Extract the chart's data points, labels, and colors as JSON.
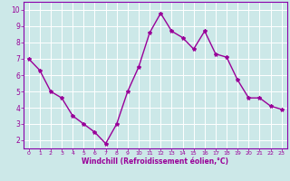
{
  "x": [
    0,
    1,
    2,
    3,
    4,
    5,
    6,
    7,
    8,
    9,
    10,
    11,
    12,
    13,
    14,
    15,
    16,
    17,
    18,
    19,
    20,
    21,
    22,
    23
  ],
  "y": [
    7.0,
    6.3,
    5.0,
    4.6,
    3.5,
    3.0,
    2.5,
    1.8,
    3.0,
    5.0,
    6.5,
    8.6,
    9.8,
    8.7,
    8.3,
    7.6,
    8.7,
    7.3,
    7.1,
    5.7,
    4.6,
    4.6,
    4.1,
    3.9
  ],
  "line_color": "#990099",
  "marker": "*",
  "bg_color": "#cce8e8",
  "grid_color": "#ffffff",
  "xlabel": "Windchill (Refroidissement éolien,°C)",
  "xlabel_color": "#990099",
  "tick_color": "#990099",
  "xlim": [
    -0.5,
    23.5
  ],
  "ylim": [
    1.5,
    10.5
  ],
  "yticks": [
    2,
    3,
    4,
    5,
    6,
    7,
    8,
    9,
    10
  ],
  "xticks": [
    0,
    1,
    2,
    3,
    4,
    5,
    6,
    7,
    8,
    9,
    10,
    11,
    12,
    13,
    14,
    15,
    16,
    17,
    18,
    19,
    20,
    21,
    22,
    23
  ],
  "marker_size": 3,
  "linewidth": 1.0,
  "spine_color": "#8800aa"
}
